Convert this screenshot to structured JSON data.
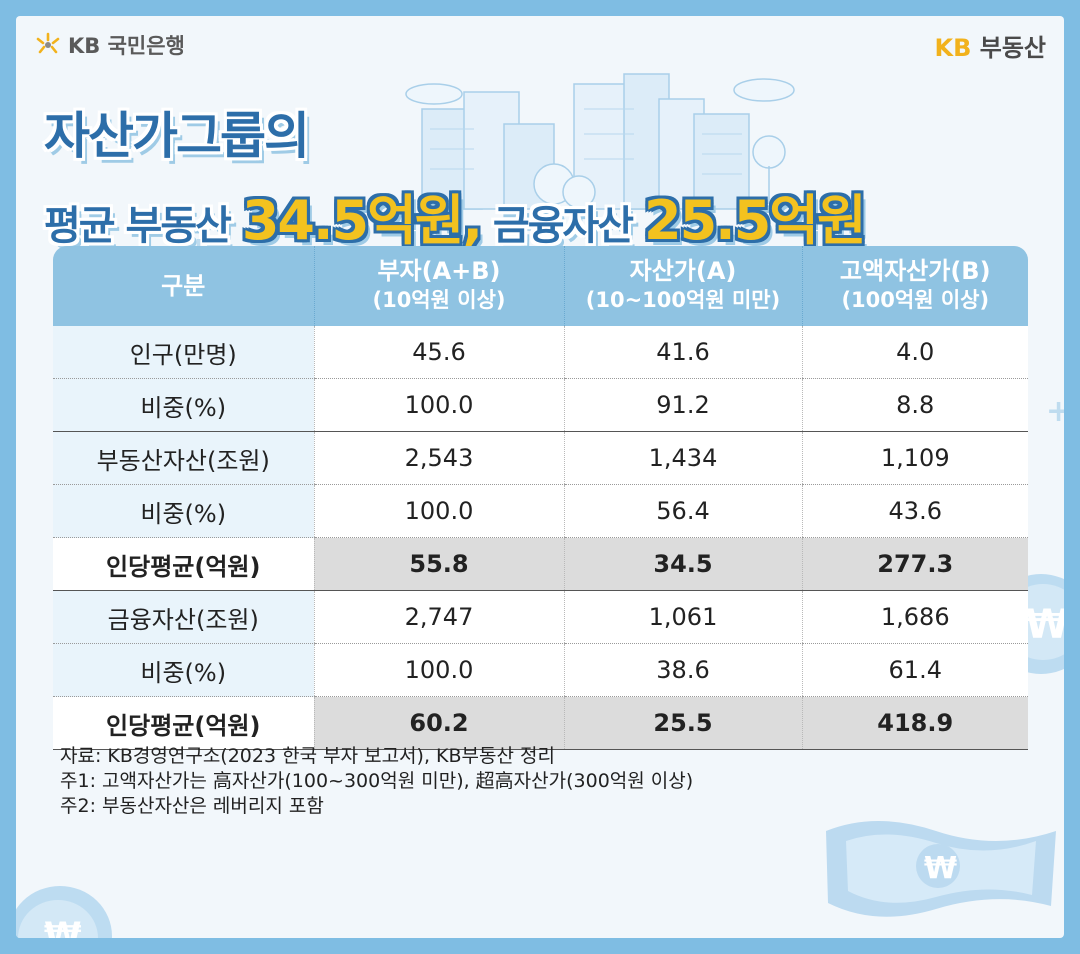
{
  "brand": {
    "left_logo": "KB 국민은행",
    "right_logo_kb": "KB",
    "right_logo_text": "부동산"
  },
  "title": {
    "line1": "자산가그룹의",
    "line2_part1": "평균 부동산 ",
    "line2_value1": "34.5억원,",
    "line2_part2": " 금융자산 ",
    "line2_value2": "25.5억원"
  },
  "table": {
    "headers": [
      {
        "line1": "구분",
        "line2": ""
      },
      {
        "line1": "부자(A+B)",
        "line2": "(10억원 이상)"
      },
      {
        "line1": "자산가(A)",
        "line2": "(10~100억원 미만)"
      },
      {
        "line1": "고액자산가(B)",
        "line2": "(100억원 이상)"
      }
    ],
    "rows": [
      [
        "인구(만명)",
        "45.6",
        "41.6",
        "4.0"
      ],
      [
        "비중(%)",
        "100.0",
        "91.2",
        "8.8"
      ],
      [
        "부동산자산(조원)",
        "2,543",
        "1,434",
        "1,109"
      ],
      [
        "비중(%)",
        "100.0",
        "56.4",
        "43.6"
      ],
      [
        "인당평균(억원)",
        "55.8",
        "34.5",
        "277.3"
      ],
      [
        "금융자산(조원)",
        "2,747",
        "1,061",
        "1,686"
      ],
      [
        "비중(%)",
        "100.0",
        "38.6",
        "61.4"
      ],
      [
        "인당평균(억원)",
        "60.2",
        "25.5",
        "418.9"
      ]
    ]
  },
  "notes": {
    "source": "자료: KB경영연구소(2023 한국 부자 보고서), KB부동산 정리",
    "note1": "주1: 고액자산가는 高자산가(100~300억원 미만), 超高자산가(300억원 이상)",
    "note2": "주2: 부동산자산은 레버리지 포함"
  },
  "colors": {
    "background_frame": "#7fbde3",
    "title_blue": "#2d6ea9",
    "title_yellow": "#f3c21f",
    "header_blue": "#8fc3e2",
    "kb_yellow": "#f2b21c"
  }
}
